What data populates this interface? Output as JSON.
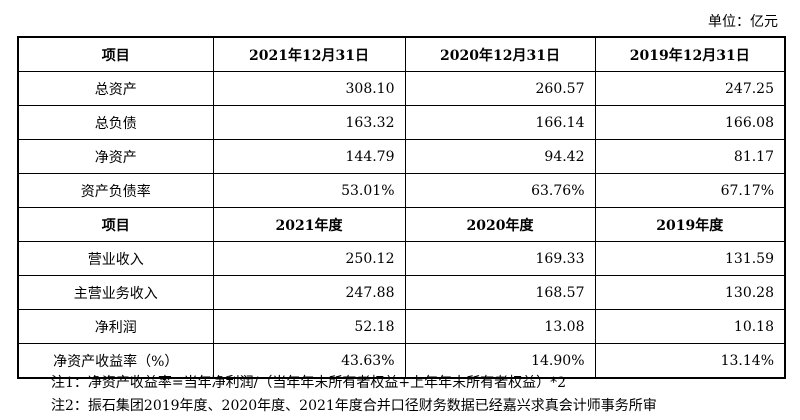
{
  "unit_label": "单位：亿元",
  "balance_header": [
    "项目",
    "2021年12月31日",
    "2020年12月31日",
    "2019年12月31日"
  ],
  "balance_rows": [
    {
      "label": "总资产",
      "values": [
        "308.10",
        "260.57",
        "247.25"
      ]
    },
    {
      "label": "总负债",
      "values": [
        "163.32",
        "166.14",
        "166.08"
      ]
    },
    {
      "label": "净资产",
      "values": [
        "144.79",
        "94.42",
        "81.17"
      ]
    },
    {
      "label": "资产负债率",
      "values": [
        "53.01%",
        "63.76%",
        "67.17%"
      ]
    }
  ],
  "income_header": [
    "项目",
    "2021年度",
    "2020年度",
    "2019年度"
  ],
  "income_rows": [
    {
      "label": "营业收入",
      "values": [
        "250.12",
        "169.33",
        "131.59"
      ]
    },
    {
      "label": "主营业务收入",
      "values": [
        "247.88",
        "168.57",
        "130.28"
      ]
    },
    {
      "label": "净利润",
      "values": [
        "52.18",
        "13.08",
        "10.18"
      ]
    },
    {
      "label": "净资产收益率（%）",
      "values": [
        "43.63%",
        "14.90%",
        "13.14%"
      ]
    }
  ],
  "notes": [
    "注1：净资产收益率=当年净利润/（当年年末所有者权益+上年年末所有者权益）*2",
    "注2：振石集团2019年度、2020年度、2021年度合并口径财务数据已经嘉兴求真会计师事务所审"
  ]
}
